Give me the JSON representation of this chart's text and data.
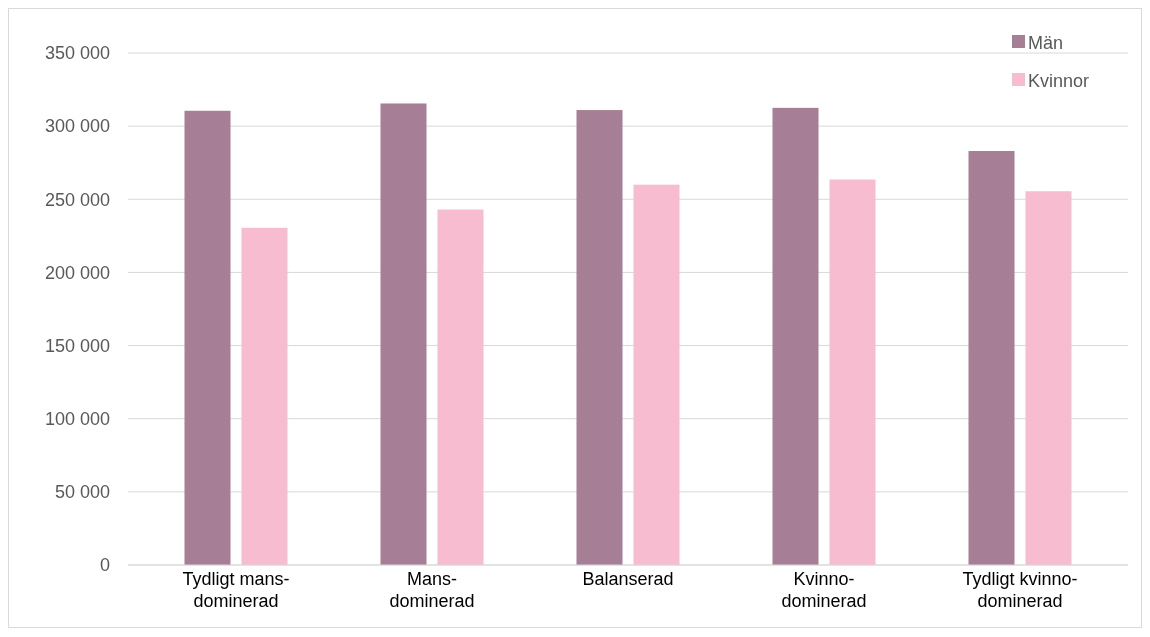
{
  "chart_data": {
    "type": "bar",
    "categories": [
      "Tydligt mans-\ndominerad",
      "Mans-\ndominerad",
      "Balanserad",
      "Kvinno-\ndominerad",
      "Tydligt kvinno-\ndominerad"
    ],
    "series": [
      {
        "name": "Män",
        "color": "#a67f96",
        "values": [
          310500,
          315500,
          311000,
          312500,
          283000
        ]
      },
      {
        "name": "Kvinnor",
        "color": "#f7bcd0",
        "values": [
          230500,
          243000,
          260000,
          263500,
          255500
        ]
      }
    ],
    "ylim": [
      0,
      350000
    ],
    "yticks": [
      {
        "value": 0,
        "label": "0"
      },
      {
        "value": 50000,
        "label": "50 000"
      },
      {
        "value": 100000,
        "label": "100 000"
      },
      {
        "value": 150000,
        "label": "150 000"
      },
      {
        "value": 200000,
        "label": "200 000"
      },
      {
        "value": 250000,
        "label": "250 000"
      },
      {
        "value": 300000,
        "label": "300 000"
      },
      {
        "value": 350000,
        "label": "350 000"
      }
    ],
    "grid": "y",
    "legend": "top right"
  }
}
